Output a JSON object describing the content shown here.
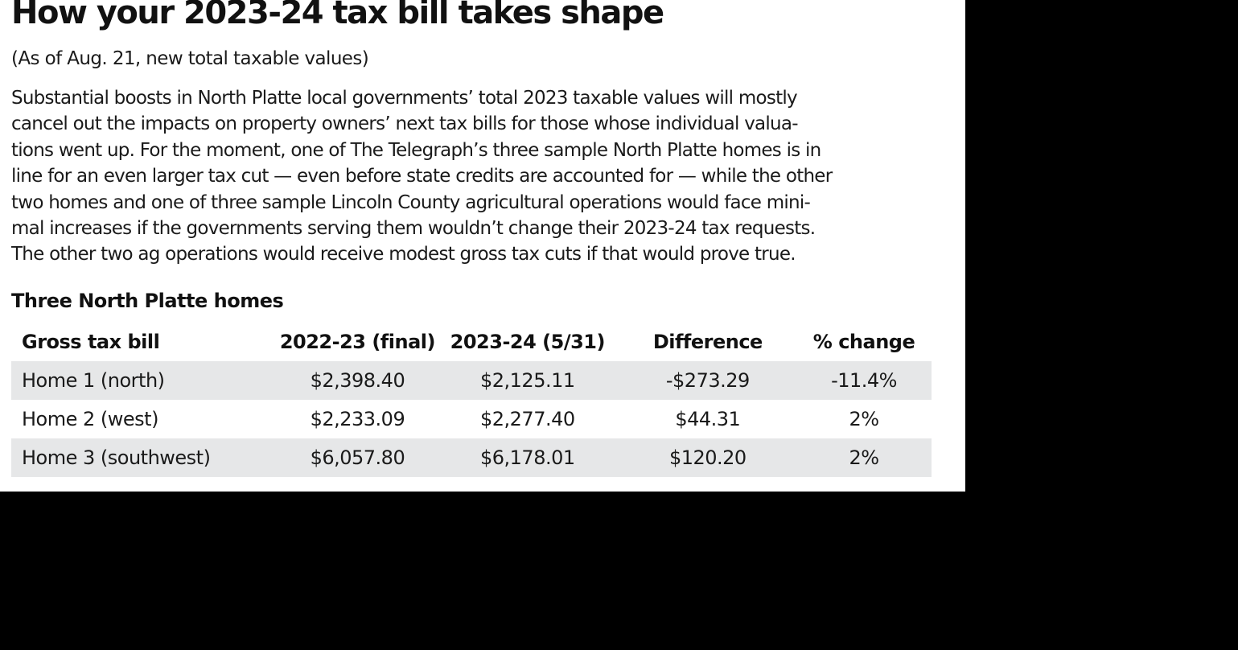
{
  "headline": "How your 2023-24 tax bill takes shape",
  "subhead": "(As of Aug. 21, new total taxable values)",
  "body_lines": [
    "Substantial boosts in North Platte local governments’ total 2023 taxable values will mostly",
    "cancel out the impacts on property owners’ next tax bills for those whose individual valua-",
    "tions went up. For the moment, one of The Telegraph’s three sample North Platte homes is in",
    "line for an even larger tax cut — even before state credits are accounted for — while the other",
    "two homes and one of three sample Lincoln County agricultural operations would face mini-",
    "mal increases if the governments serving them wouldn’t change their 2023-24 tax requests.",
    "The other two ag operations would receive modest gross tax cuts if that would prove true."
  ],
  "section_title": "Three North Platte homes",
  "table": {
    "headers": [
      "Gross tax bill",
      "2022-23 (final)",
      "2023-24 (5/31)",
      "Difference",
      "% change"
    ],
    "rows": [
      {
        "label": "Home 1 (north)",
        "prior": "$2,398.40",
        "current": "$2,125.11",
        "difference": "-$273.29",
        "pct_change": "-11.4%"
      },
      {
        "label": "Home 2 (west)",
        "prior": "$2,233.09",
        "current": "$2,277.40",
        "difference": "$44.31",
        "pct_change": "2%"
      },
      {
        "label": "Home 3 (southwest)",
        "prior": "$6,057.80",
        "current": "$6,178.01",
        "difference": "$120.20",
        "pct_change": "2%"
      }
    ]
  },
  "colors": {
    "card_background": "#ffffff",
    "outer_background": "#000000",
    "shaded_row": "#e6e7e8",
    "text": "#1a1a1a"
  }
}
